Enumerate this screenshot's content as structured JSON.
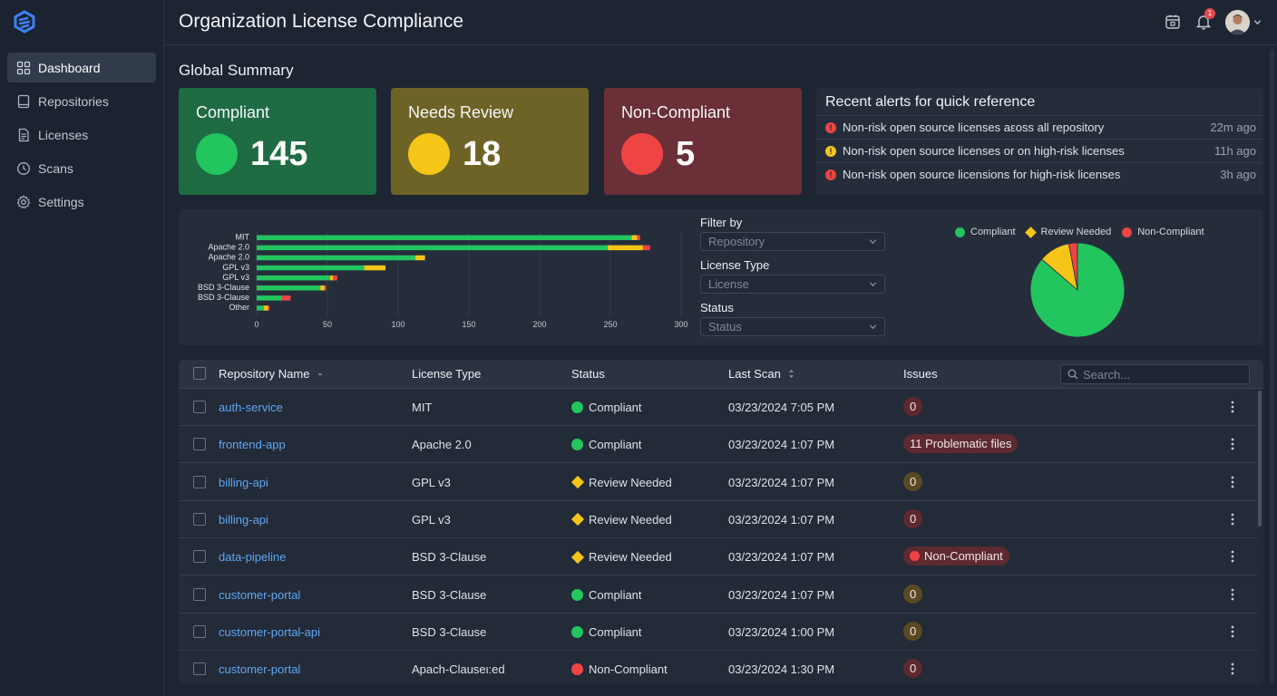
{
  "sidebar": {
    "items": [
      {
        "label": "Dashboard",
        "icon": "grid-icon",
        "active": true
      },
      {
        "label": "Repositories",
        "icon": "book-icon"
      },
      {
        "label": "Licenses",
        "icon": "document-icon"
      },
      {
        "label": "Scans",
        "icon": "clock-icon"
      },
      {
        "label": "Settings",
        "icon": "gear-icon"
      }
    ]
  },
  "header": {
    "title": "Organization License Compliance",
    "notification_count": "1"
  },
  "summary": {
    "title": "Global Summary",
    "cards": [
      {
        "label": "Compliant",
        "value": "145",
        "bg": "#1f6b43",
        "dot": "#22c55e"
      },
      {
        "label": "Needs Review",
        "value": "18",
        "bg": "#6e6326",
        "dot": "#f5c518"
      },
      {
        "label": "Non-Compliant",
        "value": "5",
        "bg": "#6b2f38",
        "dot": "#ef4444"
      }
    ]
  },
  "alerts": {
    "title": "Recent alerts for quick reference",
    "items": [
      {
        "text": "Non-risk open source licenses aεoss all repository",
        "time": "22m ago",
        "level": "red"
      },
      {
        "text": "Non-risk open source licenses or on high-risk licenses",
        "time": "11h ago",
        "level": "yellow"
      },
      {
        "text": "Non-risk open source licensions for high-risk licenses",
        "time": "3h ago",
        "level": "red"
      }
    ]
  },
  "chart_data": [
    {
      "type": "bar",
      "orientation": "horizontal",
      "stacked": true,
      "categories": [
        "MIT",
        "Apache 2.0",
        "Apache 2.0",
        "GPL v3",
        "GPL v3",
        "BSD 3-Clause",
        "BSD 3-Clause",
        "Other"
      ],
      "series": [
        {
          "name": "Compliant",
          "color": "#22c55e",
          "values": [
            265,
            248,
            112,
            76,
            52,
            45,
            18,
            5
          ]
        },
        {
          "name": "Review Needed",
          "color": "#f5c518",
          "values": [
            4,
            25,
            7,
            15,
            2,
            3,
            0,
            3
          ]
        },
        {
          "name": "Non-Compliant",
          "color": "#ef4444",
          "values": [
            2,
            5,
            0,
            0,
            3,
            1,
            6,
            1
          ]
        }
      ],
      "xticks": [
        "0",
        "50",
        "100",
        "150",
        "200",
        "250",
        "300"
      ],
      "xlim": [
        0,
        300
      ]
    },
    {
      "type": "pie",
      "legend_position": "top",
      "labels": [
        "Compliant",
        "Review Needed",
        "Non-Compliant"
      ],
      "values": [
        145,
        18,
        5
      ],
      "colors": [
        "#22c55e",
        "#f5c518",
        "#ef4444"
      ]
    }
  ],
  "filters": {
    "title": "Filter by",
    "repository": {
      "placeholder": "Repository"
    },
    "license_type": {
      "label": "License Type",
      "placeholder": "License"
    },
    "status": {
      "label": "Status",
      "placeholder": "Status"
    }
  },
  "table": {
    "columns": {
      "name": "Repository Name",
      "license": "License Type",
      "status": "Status",
      "scan": "Last Scan",
      "issues": "Issues"
    },
    "search_placeholder": "Search...",
    "rows": [
      {
        "name": "auth-service",
        "license": "MIT",
        "status": "Compliant",
        "scan": "03/23/2024 7:05 PM",
        "issues": "0",
        "issue_style": "red"
      },
      {
        "name": "frontend-app",
        "license": "Apache 2.0",
        "status": "Compliant",
        "scan": "03/23/2024 1:07 PM",
        "issues": "11 Problematic files",
        "issue_style": "red"
      },
      {
        "name": "billing-api",
        "license": "GPL v3",
        "status": "Review Needed",
        "scan": "03/23/2024 1:07 PM",
        "issues": "0",
        "issue_style": "yellow"
      },
      {
        "name": "billing-api",
        "license": "GPL v3",
        "status": "Review Needed",
        "scan": "03/23/2024 1:07 PM",
        "issues": "0",
        "issue_style": "red"
      },
      {
        "name": "data-pipeline",
        "license": "BSD 3-Clause",
        "status": "Review Needed",
        "scan": "03/23/2024 1:07 PM",
        "issues": "Non-Compliant",
        "issue_style": "red-dot"
      },
      {
        "name": "customer-portal",
        "license": "BSD 3-Clause",
        "status": "Compliant",
        "scan": "03/23/2024 1:07 PM",
        "issues": "0",
        "issue_style": "yellow"
      },
      {
        "name": "customer-portal-api",
        "license": "BSD 3-Clause",
        "status": "Compliant",
        "scan": "03/23/2024 1:00 PM",
        "issues": "0",
        "issue_style": "yellow"
      },
      {
        "name": "customer-portal",
        "license": "Apach-Clauseι:ed",
        "status": "Non-Compliant",
        "scan": "03/23/2024 1:30 PM",
        "issues": "0",
        "issue_style": "red"
      }
    ]
  }
}
